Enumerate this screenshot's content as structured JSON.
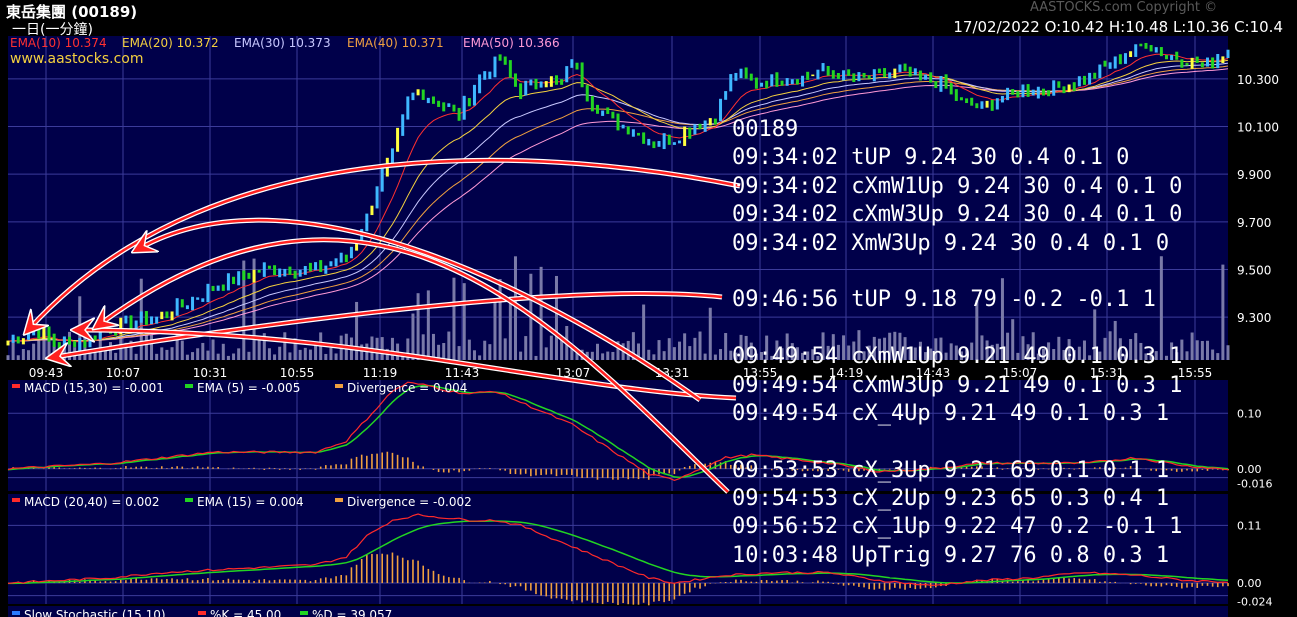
{
  "header": {
    "title": "東岳集團 (00189)",
    "period": "一日(一分鐘)",
    "copyright": "AASTOCKS.com Copyright ©",
    "ohlc": "17/02/2022   O:10.42   H:10.48   L:10.36   C:10.4"
  },
  "colors": {
    "background": "#000000",
    "panel": "#00004a",
    "grid": "#3b3b9a",
    "price": "#3fb8ff",
    "ema10": "#ff3030",
    "ema20": "#f4d03f",
    "ema30": "#c8c8ff",
    "ema40": "#f0a040",
    "ema50": "#ff9ad6",
    "macd": "#ff2a2a",
    "signal": "#22d422",
    "divergence": "#f0a040",
    "annotation": "#ffffff",
    "arrow": "#ff2020"
  },
  "chart_data": [
    {
      "type": "line",
      "panel": "price",
      "legend": [
        {
          "label": "EMA(10) 10.374",
          "color": "#ff3030"
        },
        {
          "label": "EMA(20) 10.372",
          "color": "#f4d03f"
        },
        {
          "label": "EMA(30) 10.373",
          "color": "#c8c8ff"
        },
        {
          "label": "EMA(40) 10.371",
          "color": "#f0a040"
        },
        {
          "label": "EMA(50) 10.366",
          "color": "#ff9ad6"
        }
      ],
      "source": "www.aastocks.com",
      "x_ticks": [
        "09:43",
        "10:07",
        "10:31",
        "10:55",
        "11:19",
        "11:43",
        "13:07",
        "13:31",
        "13:55",
        "14:19",
        "14:43",
        "15:07",
        "15:31",
        "15:55"
      ],
      "y_ticks": [
        "10.300",
        "10.100",
        "9.900",
        "9.700",
        "9.500",
        "9.300"
      ],
      "ylim": [
        9.12,
        10.48
      ],
      "price_keypoints": {
        "t": [
          0,
          6,
          10,
          16,
          20,
          30,
          40,
          50,
          60,
          66,
          70,
          72,
          75,
          78,
          80,
          84,
          88,
          92,
          96,
          100,
          104,
          108,
          110,
          114,
          118,
          122,
          126,
          130,
          134,
          138,
          140,
          142,
          146,
          150,
          154,
          158,
          162,
          166,
          170,
          174,
          178,
          182,
          186,
          190,
          194,
          198,
          202,
          206,
          210,
          214,
          218,
          222,
          226,
          230,
          234,
          238
        ],
        "v": [
          9.2,
          9.24,
          9.18,
          9.21,
          9.26,
          9.3,
          9.42,
          9.5,
          9.5,
          9.55,
          9.72,
          9.85,
          9.98,
          10.2,
          10.25,
          10.2,
          10.15,
          10.3,
          10.38,
          10.25,
          10.3,
          10.28,
          10.38,
          10.2,
          10.12,
          10.08,
          10.03,
          10.05,
          10.1,
          10.15,
          10.25,
          10.33,
          10.28,
          10.3,
          10.3,
          10.33,
          10.32,
          10.3,
          10.31,
          10.33,
          10.3,
          10.28,
          10.2,
          10.18,
          10.22,
          10.25,
          10.25,
          10.27,
          10.3,
          10.35,
          10.4,
          10.45,
          10.4,
          10.38,
          10.36,
          10.42
        ]
      },
      "volume_max_index": 1
    },
    {
      "type": "line",
      "panel": "macd1",
      "legend": [
        {
          "label": "MACD (15,30) = -0.001",
          "color": "#ff2a2a"
        },
        {
          "label": "EMA (5) = -0.005",
          "color": "#22d422"
        },
        {
          "label": "Divergence = 0.004",
          "color": "#f0a040"
        }
      ],
      "y_ticks": [
        "0.10",
        "0.00",
        "-0.016"
      ],
      "ylim": [
        -0.04,
        0.16
      ],
      "macd_keypoints": {
        "t": [
          0,
          20,
          30,
          40,
          50,
          60,
          66,
          70,
          75,
          78,
          82,
          86,
          90,
          95,
          100,
          105,
          110,
          115,
          120,
          125,
          130,
          135,
          140,
          145,
          150,
          160,
          170,
          180,
          190,
          200,
          210,
          220,
          230,
          238
        ],
        "v": [
          0.0,
          0.01,
          0.02,
          0.03,
          0.03,
          0.03,
          0.05,
          0.09,
          0.14,
          0.155,
          0.15,
          0.14,
          0.135,
          0.14,
          0.12,
          0.1,
          0.08,
          0.05,
          0.02,
          -0.01,
          -0.02,
          0.0,
          0.02,
          0.025,
          0.02,
          0.01,
          -0.005,
          0.0,
          0.01,
          0.01,
          0.01,
          0.02,
          0.005,
          -0.001
        ]
      }
    },
    {
      "type": "line",
      "panel": "macd2",
      "legend": [
        {
          "label": "MACD (20,40) = 0.002",
          "color": "#ff2a2a"
        },
        {
          "label": "EMA (15) = 0.004",
          "color": "#22d422"
        },
        {
          "label": "Divergence = -0.002",
          "color": "#f0a040"
        }
      ],
      "y_ticks": [
        "0.11",
        "0.00",
        "-0.024"
      ],
      "ylim": [
        -0.04,
        0.17
      ],
      "macd_keypoints": {
        "t": [
          0,
          20,
          30,
          40,
          50,
          60,
          66,
          70,
          75,
          80,
          85,
          90,
          95,
          100,
          105,
          110,
          115,
          120,
          125,
          130,
          140,
          150,
          160,
          170,
          180,
          190,
          200,
          210,
          220,
          230,
          238
        ],
        "v": [
          0.0,
          0.01,
          0.02,
          0.025,
          0.03,
          0.035,
          0.05,
          0.09,
          0.12,
          0.13,
          0.125,
          0.12,
          0.12,
          0.11,
          0.09,
          0.07,
          0.05,
          0.03,
          0.01,
          0.0,
          0.015,
          0.02,
          0.02,
          0.005,
          -0.005,
          0.005,
          0.01,
          0.02,
          0.015,
          0.005,
          0.002
        ]
      }
    }
  ],
  "stochastic": {
    "title": "Slow Stochastic (15,10)",
    "k": "%K = 45.00",
    "d": "%D = 39.057"
  },
  "annotations": {
    "code": "00189",
    "rows": [
      "09:34:02 tUP 9.24 30 0.4 0.1 0",
      "09:34:02 cXmW1Up 9.24 30 0.4 0.1 0",
      "09:34:02 cXmW3Up 9.24 30 0.4 0.1 0",
      "09:34:02 XmW3Up 9.24 30 0.4 0.1 0",
      "",
      "09:46:56 tUP 9.18 79 -0.2 -0.1 1",
      "",
      "09:49:54 cXmW1Up 9.21 49 0.1 0.3 1",
      "09:49:54 cXmW3Up 9.21 49 0.1 0.3 1",
      "09:49:54 cX_4Up 9.21 49 0.1 0.3 1",
      "",
      "09:53:53 cX_3Up 9.21 69 0.1 0.1 1",
      "09:54:53 cX_2Up 9.23 65 0.3 0.4 1",
      "09:56:52 cX_1Up 9.22 47 0.2 -0.1 1",
      "10:03:48 UpTrig 9.27 76 0.8 0.3 1"
    ]
  }
}
